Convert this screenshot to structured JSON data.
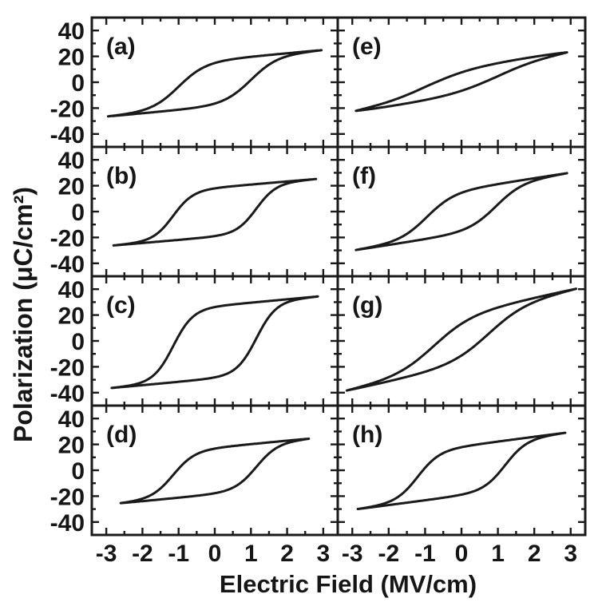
{
  "figure": {
    "xlabel": "Electric Field (MV/cm)",
    "ylabel": "Polarization (μC/cm²)",
    "background": "#ffffff",
    "line_color": "#1a1a1a",
    "x_ticks": [
      -3,
      -2,
      -1,
      0,
      1,
      2,
      3
    ],
    "y_ticks": [
      40,
      20,
      0,
      -20,
      -40
    ],
    "x_minor_step": 0.5,
    "y_minor_step": 10,
    "x_range": [
      -3.4,
      3.4
    ],
    "y_range": [
      -50,
      50
    ],
    "grid_rows": 4,
    "grid_cols": 2,
    "legend": "none"
  },
  "chart_data": {
    "type": "line",
    "description": "Eight polarization vs electric-field ferroelectric hysteresis loops, panels (a)-(h), arranged 4 rows x 2 columns with shared axes",
    "x_axis": {
      "label": "Electric Field (MV/cm)",
      "ticks": [
        -3,
        -2,
        -1,
        0,
        1,
        2,
        3
      ],
      "range": [
        -3.4,
        3.4
      ]
    },
    "y_axis": {
      "label": "Polarization (μC/cm²)",
      "ticks": [
        40,
        20,
        0,
        -20,
        -40
      ],
      "range": [
        -50,
        50
      ]
    },
    "panels": [
      {
        "label": "(a)",
        "row": 0,
        "col": 0,
        "readings": {
          "P_max": 25,
          "P_min": -27,
          "P_remanent": 16,
          "E_coercive_neg": -1.0,
          "E_coercive_pos": 1.1,
          "E_loop_extent": 2.95
        },
        "model": {
          "Ps": 18,
          "Ec": 1.0,
          "w": 0.75,
          "chi": 2.6,
          "P0": -0.8,
          "Emax": 2.95
        }
      },
      {
        "label": "(b)",
        "row": 1,
        "col": 0,
        "readings": {
          "P_max": 26,
          "P_min": -27,
          "P_remanent": 18,
          "E_coercive_neg": -1.0,
          "E_coercive_pos": 1.2,
          "E_loop_extent": 2.8
        },
        "model": {
          "Ps": 19,
          "Ec": 1.15,
          "w": 0.55,
          "chi": 2.4,
          "P0": -0.5,
          "Emax": 2.8
        }
      },
      {
        "label": "(c)",
        "row": 2,
        "col": 0,
        "readings": {
          "P_max": 35,
          "P_min": -37,
          "P_remanent": 26,
          "E_coercive_neg": -1.05,
          "E_coercive_pos": 1.25,
          "E_loop_extent": 2.85
        },
        "model": {
          "Ps": 28,
          "Ec": 1.15,
          "w": 0.55,
          "chi": 2.6,
          "P0": -1.0,
          "Emax": 2.85
        }
      },
      {
        "label": "(d)",
        "row": 3,
        "col": 0,
        "readings": {
          "P_max": 25,
          "P_min": -26,
          "P_remanent": 16,
          "E_coercive_neg": -1.05,
          "E_coercive_pos": 1.25,
          "E_loop_extent": 2.6
        },
        "model": {
          "Ps": 18,
          "Ec": 1.15,
          "w": 0.6,
          "chi": 2.7,
          "P0": -0.5,
          "Emax": 2.6
        }
      },
      {
        "label": "(e)",
        "row": 0,
        "col": 1,
        "readings": {
          "P_max": 23,
          "P_min": -22,
          "P_remanent": 5,
          "E_coercive_neg": -0.7,
          "E_coercive_pos": 0.7,
          "E_loop_extent": 2.9
        },
        "model": {
          "Ps": 11,
          "Ec": 1.0,
          "w": 1.3,
          "chi": 4.2,
          "P0": 0.5,
          "Emax": 2.9
        }
      },
      {
        "label": "(f)",
        "row": 1,
        "col": 1,
        "readings": {
          "P_max": 30,
          "P_min": -30,
          "P_remanent": 14,
          "E_coercive_neg": -0.7,
          "E_coercive_pos": 0.9,
          "E_loop_extent": 2.9
        },
        "model": {
          "Ps": 17,
          "Ec": 0.95,
          "w": 0.75,
          "chi": 4.4,
          "P0": 0.0,
          "Emax": 2.9
        }
      },
      {
        "label": "(g)",
        "row": 2,
        "col": 1,
        "readings": {
          "P_max": 39,
          "P_min": -37,
          "P_remanent": 13,
          "E_coercive_neg": -0.55,
          "E_coercive_pos": 0.9,
          "E_loop_extent": 3.15
        },
        "model": {
          "Ps": 20,
          "Ec": 0.75,
          "w": 1.05,
          "chi": 6.2,
          "P0": 1.0,
          "Emax": 3.15
        }
      },
      {
        "label": "(h)",
        "row": 3,
        "col": 1,
        "readings": {
          "P_max": 29,
          "P_min": -30,
          "P_remanent": 17,
          "E_coercive_neg": -1.1,
          "E_coercive_pos": 1.25,
          "E_loop_extent": 2.85
        },
        "model": {
          "Ps": 19,
          "Ec": 1.2,
          "w": 0.6,
          "chi": 3.7,
          "P0": -0.5,
          "Emax": 2.85
        }
      }
    ]
  }
}
